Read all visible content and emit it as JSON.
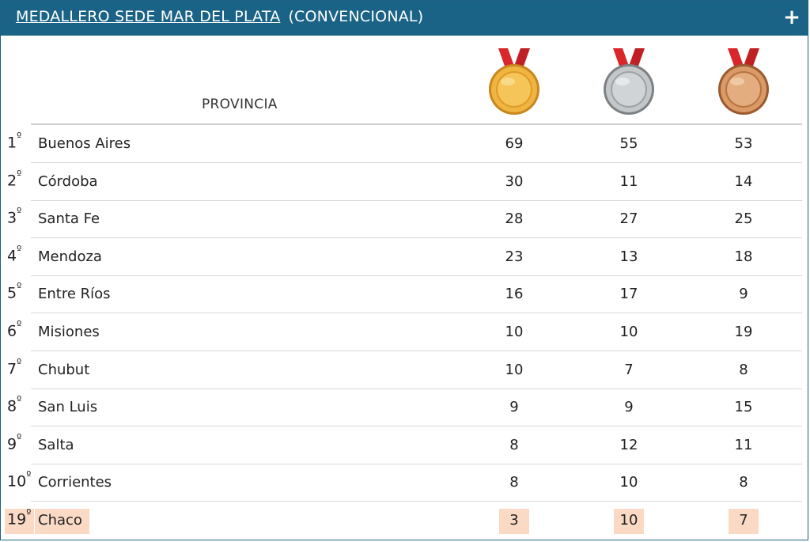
{
  "header": {
    "link_text": "MEDALLERO SEDE MAR DEL PLATA",
    "subtitle": "(CONVENCIONAL)",
    "expand_icon": "plus-icon",
    "expand_symbol": "+"
  },
  "table": {
    "column_header": "PROVINCIA",
    "medal_icons": [
      "gold-medal-icon",
      "silver-medal-icon",
      "bronze-medal-icon"
    ],
    "rows": [
      {
        "rank": "1",
        "ordinal": "º",
        "province": "Buenos Aires",
        "gold": "69",
        "silver": "55",
        "bronze": "53"
      },
      {
        "rank": "2",
        "ordinal": "º",
        "province": "Córdoba",
        "gold": "30",
        "silver": "11",
        "bronze": "14"
      },
      {
        "rank": "3",
        "ordinal": "º",
        "province": "Santa Fe",
        "gold": "28",
        "silver": "27",
        "bronze": "25"
      },
      {
        "rank": "4",
        "ordinal": "º",
        "province": "Mendoza",
        "gold": "23",
        "silver": "13",
        "bronze": "18"
      },
      {
        "rank": "5",
        "ordinal": "º",
        "province": "Entre Ríos",
        "gold": "16",
        "silver": "17",
        "bronze": "9"
      },
      {
        "rank": "6",
        "ordinal": "º",
        "province": "Misiones",
        "gold": "10",
        "silver": "10",
        "bronze": "19"
      },
      {
        "rank": "7",
        "ordinal": "º",
        "province": "Chubut",
        "gold": "10",
        "silver": "7",
        "bronze": "8"
      },
      {
        "rank": "8",
        "ordinal": "º",
        "province": "San Luis",
        "gold": "9",
        "silver": "9",
        "bronze": "15"
      },
      {
        "rank": "9",
        "ordinal": "º",
        "province": "Salta",
        "gold": "8",
        "silver": "12",
        "bronze": "11"
      },
      {
        "rank": "10",
        "ordinal": "º",
        "province": "Corrientes",
        "gold": "8",
        "silver": "10",
        "bronze": "8"
      }
    ],
    "highlighted_row": {
      "rank": "19",
      "ordinal": "º",
      "province": "Chaco",
      "gold": "3",
      "silver": "10",
      "bronze": "7"
    }
  },
  "colors": {
    "header_bg": "#1a6386",
    "highlight": "#fad9c5",
    "gold": "#e0a030",
    "silver": "#a9acae",
    "bronze": "#c88455",
    "ribbon": "#d9262b"
  }
}
